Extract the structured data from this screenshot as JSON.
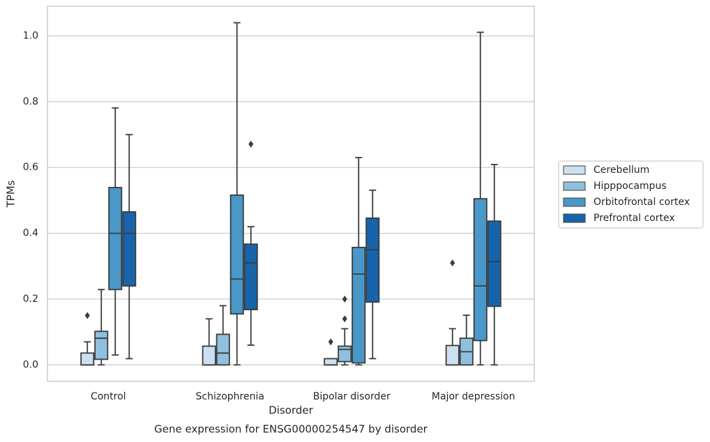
{
  "chart_data": {
    "type": "box",
    "title": "Gene expression for ENSG00000254547 by disorder",
    "xlabel": "Disorder",
    "ylabel": "TPMs",
    "categories": [
      "Control",
      "Schizophrenia",
      "Bipolar disorder",
      "Major depression"
    ],
    "ylim": [
      -0.05,
      1.09
    ],
    "yticks": [
      {
        "value": 0,
        "label": "0.0"
      },
      {
        "value": 0.2,
        "label": "0.2"
      },
      {
        "value": 0.4,
        "label": "0.4"
      },
      {
        "value": 0.6,
        "label": "0.6"
      },
      {
        "value": 0.8,
        "label": "0.8"
      },
      {
        "value": 1.0,
        "label": "1.0"
      }
    ],
    "grid": true,
    "legend": "right",
    "series": [
      {
        "name": "Cerebellum",
        "color": "#cde0f1",
        "whislo": [
          0,
          0,
          0,
          0
        ],
        "q1": [
          0,
          0,
          0,
          0
        ],
        "median": [
          0,
          0,
          0,
          0
        ],
        "q3": [
          0.036,
          0.057,
          0.019,
          0.059
        ],
        "whishi": [
          0.07,
          0.14,
          0.019,
          0.11
        ],
        "outliers": [
          [
            0.15
          ],
          [],
          [
            0.07
          ],
          [
            0.31
          ]
        ]
      },
      {
        "name": "Hipppocampus",
        "color": "#8fc1de",
        "whislo": [
          0,
          0,
          0,
          0
        ],
        "q1": [
          0.017,
          0,
          0.01,
          0
        ],
        "median": [
          0.081,
          0.036,
          0.047,
          0.04
        ],
        "q3": [
          0.102,
          0.093,
          0.057,
          0.081
        ],
        "whishi": [
          0.229,
          0.18,
          0.11,
          0.151
        ],
        "outliers": [
          [],
          [],
          [
            0.14,
            0.2
          ],
          []
        ]
      },
      {
        "name": "Orbitofrontal cortex",
        "color": "#4a98c9",
        "whislo": [
          0.03,
          0,
          0,
          0
        ],
        "q1": [
          0.229,
          0.155,
          0.006,
          0.074
        ],
        "median": [
          0.4,
          0.261,
          0.276,
          0.24
        ],
        "q3": [
          0.539,
          0.516,
          0.357,
          0.505
        ],
        "whishi": [
          0.781,
          1.04,
          0.63,
          1.011
        ],
        "outliers": [
          [],
          [],
          [],
          []
        ]
      },
      {
        "name": "Prefrontal cortex",
        "color": "#1764ab",
        "whislo": [
          0.019,
          0.06,
          0.019,
          0
        ],
        "q1": [
          0.24,
          0.168,
          0.191,
          0.178
        ],
        "median": [
          0.4,
          0.31,
          0.35,
          0.314
        ],
        "q3": [
          0.465,
          0.367,
          0.446,
          0.437
        ],
        "whishi": [
          0.7,
          0.42,
          0.531,
          0.609
        ],
        "outliers": [
          [],
          [
            0.671
          ],
          [],
          []
        ]
      }
    ]
  }
}
